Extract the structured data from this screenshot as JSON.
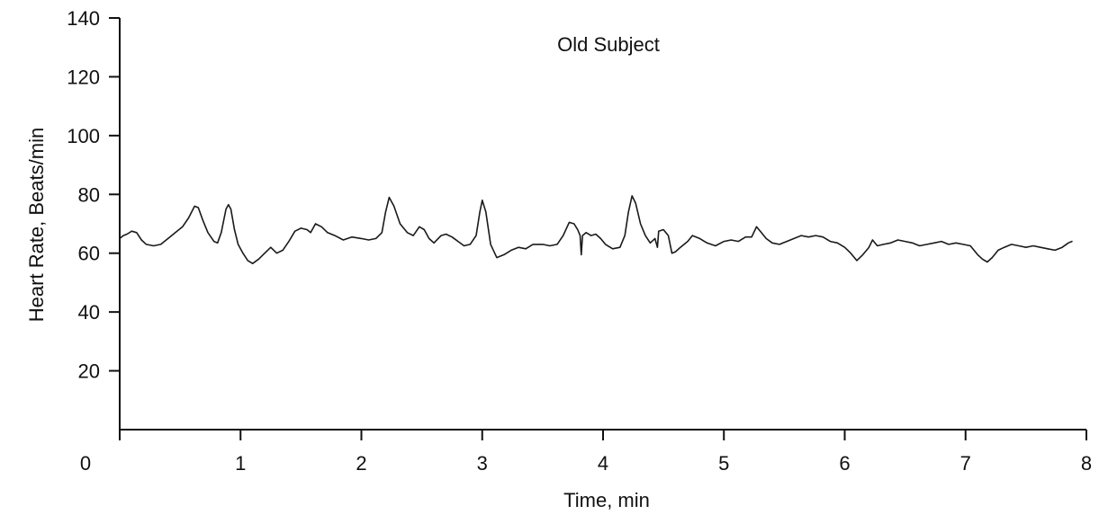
{
  "chart_data": {
    "type": "line",
    "title": "Old Subject",
    "xlabel": "Time, min",
    "ylabel": "Heart Rate, Beats/min",
    "xlim": [
      0,
      8
    ],
    "ylim": [
      0,
      140
    ],
    "xticks": [
      0,
      1,
      2,
      3,
      4,
      5,
      6,
      7,
      8
    ],
    "yticks": [
      20,
      40,
      60,
      80,
      100,
      120,
      140
    ],
    "grid": false,
    "line_color": "#1a1a1a",
    "series": [
      {
        "points": [
          [
            0.0,
            65
          ],
          [
            0.03,
            66
          ],
          [
            0.06,
            66.5
          ],
          [
            0.1,
            67.5
          ],
          [
            0.14,
            67
          ],
          [
            0.18,
            64.5
          ],
          [
            0.22,
            63
          ],
          [
            0.28,
            62.5
          ],
          [
            0.34,
            63
          ],
          [
            0.4,
            65
          ],
          [
            0.46,
            67
          ],
          [
            0.52,
            69
          ],
          [
            0.57,
            72
          ],
          [
            0.62,
            76
          ],
          [
            0.65,
            75.5
          ],
          [
            0.69,
            71
          ],
          [
            0.73,
            67
          ],
          [
            0.78,
            64
          ],
          [
            0.81,
            63.5
          ],
          [
            0.84,
            67
          ],
          [
            0.88,
            75
          ],
          [
            0.9,
            76.5
          ],
          [
            0.92,
            75
          ],
          [
            0.95,
            68
          ],
          [
            0.98,
            63
          ],
          [
            1.02,
            60
          ],
          [
            1.06,
            57.5
          ],
          [
            1.1,
            56.5
          ],
          [
            1.15,
            58
          ],
          [
            1.2,
            60
          ],
          [
            1.25,
            62
          ],
          [
            1.3,
            60
          ],
          [
            1.35,
            61
          ],
          [
            1.4,
            64
          ],
          [
            1.45,
            67.5
          ],
          [
            1.5,
            68.5
          ],
          [
            1.55,
            68
          ],
          [
            1.58,
            67
          ],
          [
            1.62,
            70
          ],
          [
            1.67,
            69
          ],
          [
            1.72,
            67
          ],
          [
            1.78,
            66
          ],
          [
            1.85,
            64.5
          ],
          [
            1.92,
            65.5
          ],
          [
            2.0,
            65
          ],
          [
            2.06,
            64.5
          ],
          [
            2.12,
            65
          ],
          [
            2.17,
            67
          ],
          [
            2.2,
            74
          ],
          [
            2.23,
            79
          ],
          [
            2.27,
            76
          ],
          [
            2.32,
            70
          ],
          [
            2.38,
            67
          ],
          [
            2.43,
            66
          ],
          [
            2.48,
            69
          ],
          [
            2.52,
            68
          ],
          [
            2.56,
            65
          ],
          [
            2.6,
            63.5
          ],
          [
            2.66,
            66
          ],
          [
            2.7,
            66.5
          ],
          [
            2.75,
            65.5
          ],
          [
            2.8,
            64
          ],
          [
            2.85,
            62.5
          ],
          [
            2.9,
            63
          ],
          [
            2.95,
            66
          ],
          [
            2.98,
            74
          ],
          [
            3.0,
            78
          ],
          [
            3.03,
            74
          ],
          [
            3.07,
            63
          ],
          [
            3.12,
            58.5
          ],
          [
            3.18,
            59.5
          ],
          [
            3.24,
            61
          ],
          [
            3.3,
            62
          ],
          [
            3.36,
            61.5
          ],
          [
            3.42,
            63
          ],
          [
            3.5,
            63
          ],
          [
            3.56,
            62.5
          ],
          [
            3.62,
            63
          ],
          [
            3.67,
            66
          ],
          [
            3.72,
            70.5
          ],
          [
            3.76,
            70
          ],
          [
            3.79,
            68
          ],
          [
            3.81,
            66
          ],
          [
            3.82,
            59.5
          ],
          [
            3.83,
            66
          ],
          [
            3.86,
            67
          ],
          [
            3.9,
            66
          ],
          [
            3.94,
            66.5
          ],
          [
            3.98,
            65
          ],
          [
            4.02,
            63
          ],
          [
            4.08,
            61.5
          ],
          [
            4.14,
            62
          ],
          [
            4.18,
            66
          ],
          [
            4.21,
            74
          ],
          [
            4.24,
            79.5
          ],
          [
            4.27,
            77
          ],
          [
            4.31,
            70
          ],
          [
            4.35,
            66
          ],
          [
            4.39,
            63.5
          ],
          [
            4.43,
            65
          ],
          [
            4.45,
            62
          ],
          [
            4.46,
            67.5
          ],
          [
            4.5,
            68
          ],
          [
            4.54,
            66
          ],
          [
            4.57,
            60
          ],
          [
            4.6,
            60.5
          ],
          [
            4.64,
            62
          ],
          [
            4.7,
            64
          ],
          [
            4.74,
            66
          ],
          [
            4.8,
            65
          ],
          [
            4.86,
            63.5
          ],
          [
            4.93,
            62.5
          ],
          [
            5.0,
            64
          ],
          [
            5.06,
            64.5
          ],
          [
            5.12,
            64
          ],
          [
            5.18,
            65.5
          ],
          [
            5.23,
            65.5
          ],
          [
            5.27,
            69
          ],
          [
            5.31,
            67
          ],
          [
            5.35,
            65
          ],
          [
            5.4,
            63.5
          ],
          [
            5.46,
            63
          ],
          [
            5.52,
            64
          ],
          [
            5.58,
            65
          ],
          [
            5.64,
            66
          ],
          [
            5.7,
            65.5
          ],
          [
            5.76,
            66
          ],
          [
            5.82,
            65.5
          ],
          [
            5.88,
            64
          ],
          [
            5.94,
            63.5
          ],
          [
            6.0,
            62
          ],
          [
            6.05,
            60
          ],
          [
            6.1,
            57.5
          ],
          [
            6.15,
            59.5
          ],
          [
            6.2,
            62
          ],
          [
            6.23,
            64.5
          ],
          [
            6.27,
            62.5
          ],
          [
            6.32,
            63
          ],
          [
            6.38,
            63.5
          ],
          [
            6.44,
            64.5
          ],
          [
            6.5,
            64
          ],
          [
            6.56,
            63.5
          ],
          [
            6.62,
            62.5
          ],
          [
            6.68,
            63
          ],
          [
            6.74,
            63.5
          ],
          [
            6.8,
            64
          ],
          [
            6.86,
            63
          ],
          [
            6.92,
            63.5
          ],
          [
            6.98,
            63
          ],
          [
            7.04,
            62.5
          ],
          [
            7.1,
            59.5
          ],
          [
            7.14,
            58
          ],
          [
            7.18,
            57
          ],
          [
            7.22,
            58.5
          ],
          [
            7.27,
            61
          ],
          [
            7.32,
            62
          ],
          [
            7.38,
            63
          ],
          [
            7.44,
            62.5
          ],
          [
            7.5,
            62
          ],
          [
            7.56,
            62.5
          ],
          [
            7.62,
            62
          ],
          [
            7.68,
            61.5
          ],
          [
            7.74,
            61
          ],
          [
            7.8,
            62
          ],
          [
            7.85,
            63.5
          ],
          [
            7.88,
            64
          ]
        ]
      }
    ]
  }
}
